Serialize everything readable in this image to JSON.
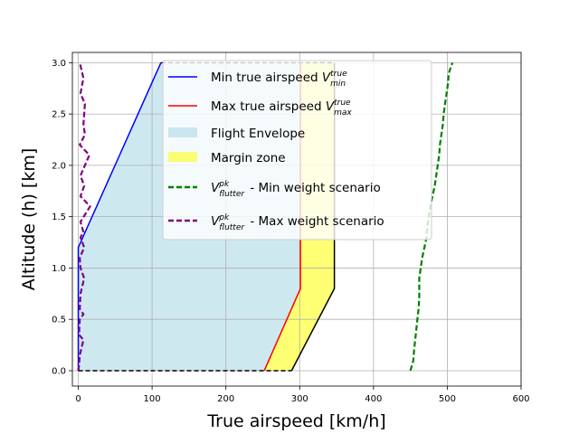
{
  "chart_data": {
    "type": "line",
    "xlabel": "True airspeed [km/h]",
    "ylabel": "Altitude (h) [km]",
    "xlim": [
      -8,
      600
    ],
    "ylim": [
      -0.15,
      3.1
    ],
    "xticks": [
      0,
      100,
      200,
      300,
      400,
      500,
      600
    ],
    "yticks": [
      0.0,
      0.5,
      1.0,
      1.5,
      2.0,
      2.5,
      3.0
    ],
    "grid": true,
    "legend_position": "upper-center",
    "series": [
      {
        "name": "Min true airspeed V_min^true",
        "kind": "line",
        "color": "#0000ff",
        "style": "solid",
        "points": [
          [
            0,
            0.0
          ],
          [
            0,
            1.2
          ],
          [
            112,
            3.0
          ]
        ]
      },
      {
        "name": "Max true airspeed V_max^true",
        "kind": "line",
        "color": "#ff0000",
        "style": "solid",
        "points": [
          [
            252,
            0.0
          ],
          [
            301,
            0.8
          ],
          [
            301,
            3.0
          ]
        ]
      },
      {
        "name": "Flight Envelope",
        "kind": "area",
        "color": "#add8e6",
        "points": [
          [
            0,
            0.0
          ],
          [
            252,
            0.0
          ],
          [
            301,
            0.8
          ],
          [
            301,
            3.0
          ],
          [
            112,
            3.0
          ],
          [
            0,
            1.2
          ]
        ]
      },
      {
        "name": "Margin zone",
        "kind": "area",
        "color": "#ffff00",
        "points": [
          [
            252,
            0.0
          ],
          [
            289,
            0.0
          ],
          [
            347,
            0.8
          ],
          [
            347,
            3.0
          ],
          [
            301,
            3.0
          ],
          [
            301,
            0.8
          ]
        ]
      },
      {
        "name": "V_flutter^pk - Min weight scenario",
        "kind": "line",
        "color": "#008000",
        "style": "dashed",
        "points": [
          [
            450,
            0.0
          ],
          [
            454,
            0.1
          ],
          [
            455,
            0.2
          ],
          [
            458,
            0.4
          ],
          [
            461,
            0.6
          ],
          [
            462,
            0.7
          ],
          [
            462,
            0.9
          ],
          [
            464,
            1.0
          ],
          [
            466,
            1.1
          ],
          [
            469,
            1.2
          ],
          [
            472,
            1.3
          ],
          [
            473,
            1.4
          ],
          [
            475,
            1.5
          ],
          [
            477,
            1.6
          ],
          [
            480,
            1.7
          ],
          [
            483,
            1.8
          ],
          [
            485,
            1.9
          ],
          [
            487,
            2.0
          ],
          [
            489,
            2.1
          ],
          [
            490,
            2.2
          ],
          [
            492,
            2.3
          ],
          [
            494,
            2.4
          ],
          [
            495,
            2.5
          ],
          [
            497,
            2.6
          ],
          [
            499,
            2.7
          ],
          [
            501,
            2.8
          ],
          [
            502,
            2.9
          ],
          [
            507,
            3.0
          ]
        ]
      },
      {
        "name": "V_flutter^pk - Max weight scenario",
        "kind": "line",
        "color": "#800080",
        "style": "dashed",
        "points": [
          [
            0,
            0.0
          ],
          [
            1,
            0.05
          ],
          [
            2,
            0.15
          ],
          [
            7,
            0.3
          ],
          [
            1,
            0.35
          ],
          [
            2,
            0.5
          ],
          [
            7,
            0.55
          ],
          [
            2,
            0.6
          ],
          [
            3,
            0.75
          ],
          [
            8,
            0.9
          ],
          [
            3,
            1.0
          ],
          [
            2,
            1.1
          ],
          [
            8,
            1.2
          ],
          [
            3,
            1.3
          ],
          [
            7,
            1.35
          ],
          [
            3,
            1.45
          ],
          [
            16,
            1.6
          ],
          [
            3,
            1.7
          ],
          [
            8,
            1.8
          ],
          [
            3,
            1.9
          ],
          [
            15,
            2.1
          ],
          [
            2,
            2.2
          ],
          [
            9,
            2.3
          ],
          [
            7,
            2.4
          ],
          [
            9,
            2.6
          ],
          [
            3,
            2.7
          ],
          [
            7,
            2.85
          ],
          [
            2,
            3.0
          ]
        ]
      },
      {
        "name": "",
        "kind": "line",
        "color": "#000000",
        "style": "solid",
        "points": [
          [
            289,
            0.0
          ],
          [
            347,
            0.8
          ],
          [
            347,
            3.0
          ]
        ]
      },
      {
        "name": "",
        "kind": "line",
        "color": "#000000",
        "style": "dashed",
        "points": [
          [
            0,
            0.0
          ],
          [
            289,
            0.0
          ]
        ]
      },
      {
        "name": "",
        "kind": "line",
        "color": "#000000",
        "style": "dashed",
        "points": [
          [
            112,
            3.0
          ],
          [
            347,
            3.0
          ]
        ]
      }
    ]
  },
  "legend": {
    "entries": [
      {
        "kind": "line",
        "color": "#0000ff",
        "style": "solid",
        "text": "Min true airspeed ",
        "var": "V",
        "sup": "true",
        "sub": "min",
        "tail": ""
      },
      {
        "kind": "line",
        "color": "#ff0000",
        "style": "solid",
        "text": "Max true airspeed ",
        "var": "V",
        "sup": "true",
        "sub": "max",
        "tail": ""
      },
      {
        "kind": "patch",
        "color": "#add8e6",
        "text": "Flight Envelope",
        "var": "",
        "sup": "",
        "sub": "",
        "tail": ""
      },
      {
        "kind": "patch",
        "color": "#ffff00",
        "text": "Margin zone",
        "var": "",
        "sup": "",
        "sub": "",
        "tail": ""
      },
      {
        "kind": "line",
        "color": "#008000",
        "style": "dashed",
        "text": "",
        "var": "V",
        "sup": "pk",
        "sub": "flutter",
        "tail": " - Min weight scenario"
      },
      {
        "kind": "line",
        "color": "#800080",
        "style": "dashed",
        "text": "",
        "var": "V",
        "sup": "pk",
        "sub": "flutter",
        "tail": " - Max weight scenario"
      }
    ]
  }
}
